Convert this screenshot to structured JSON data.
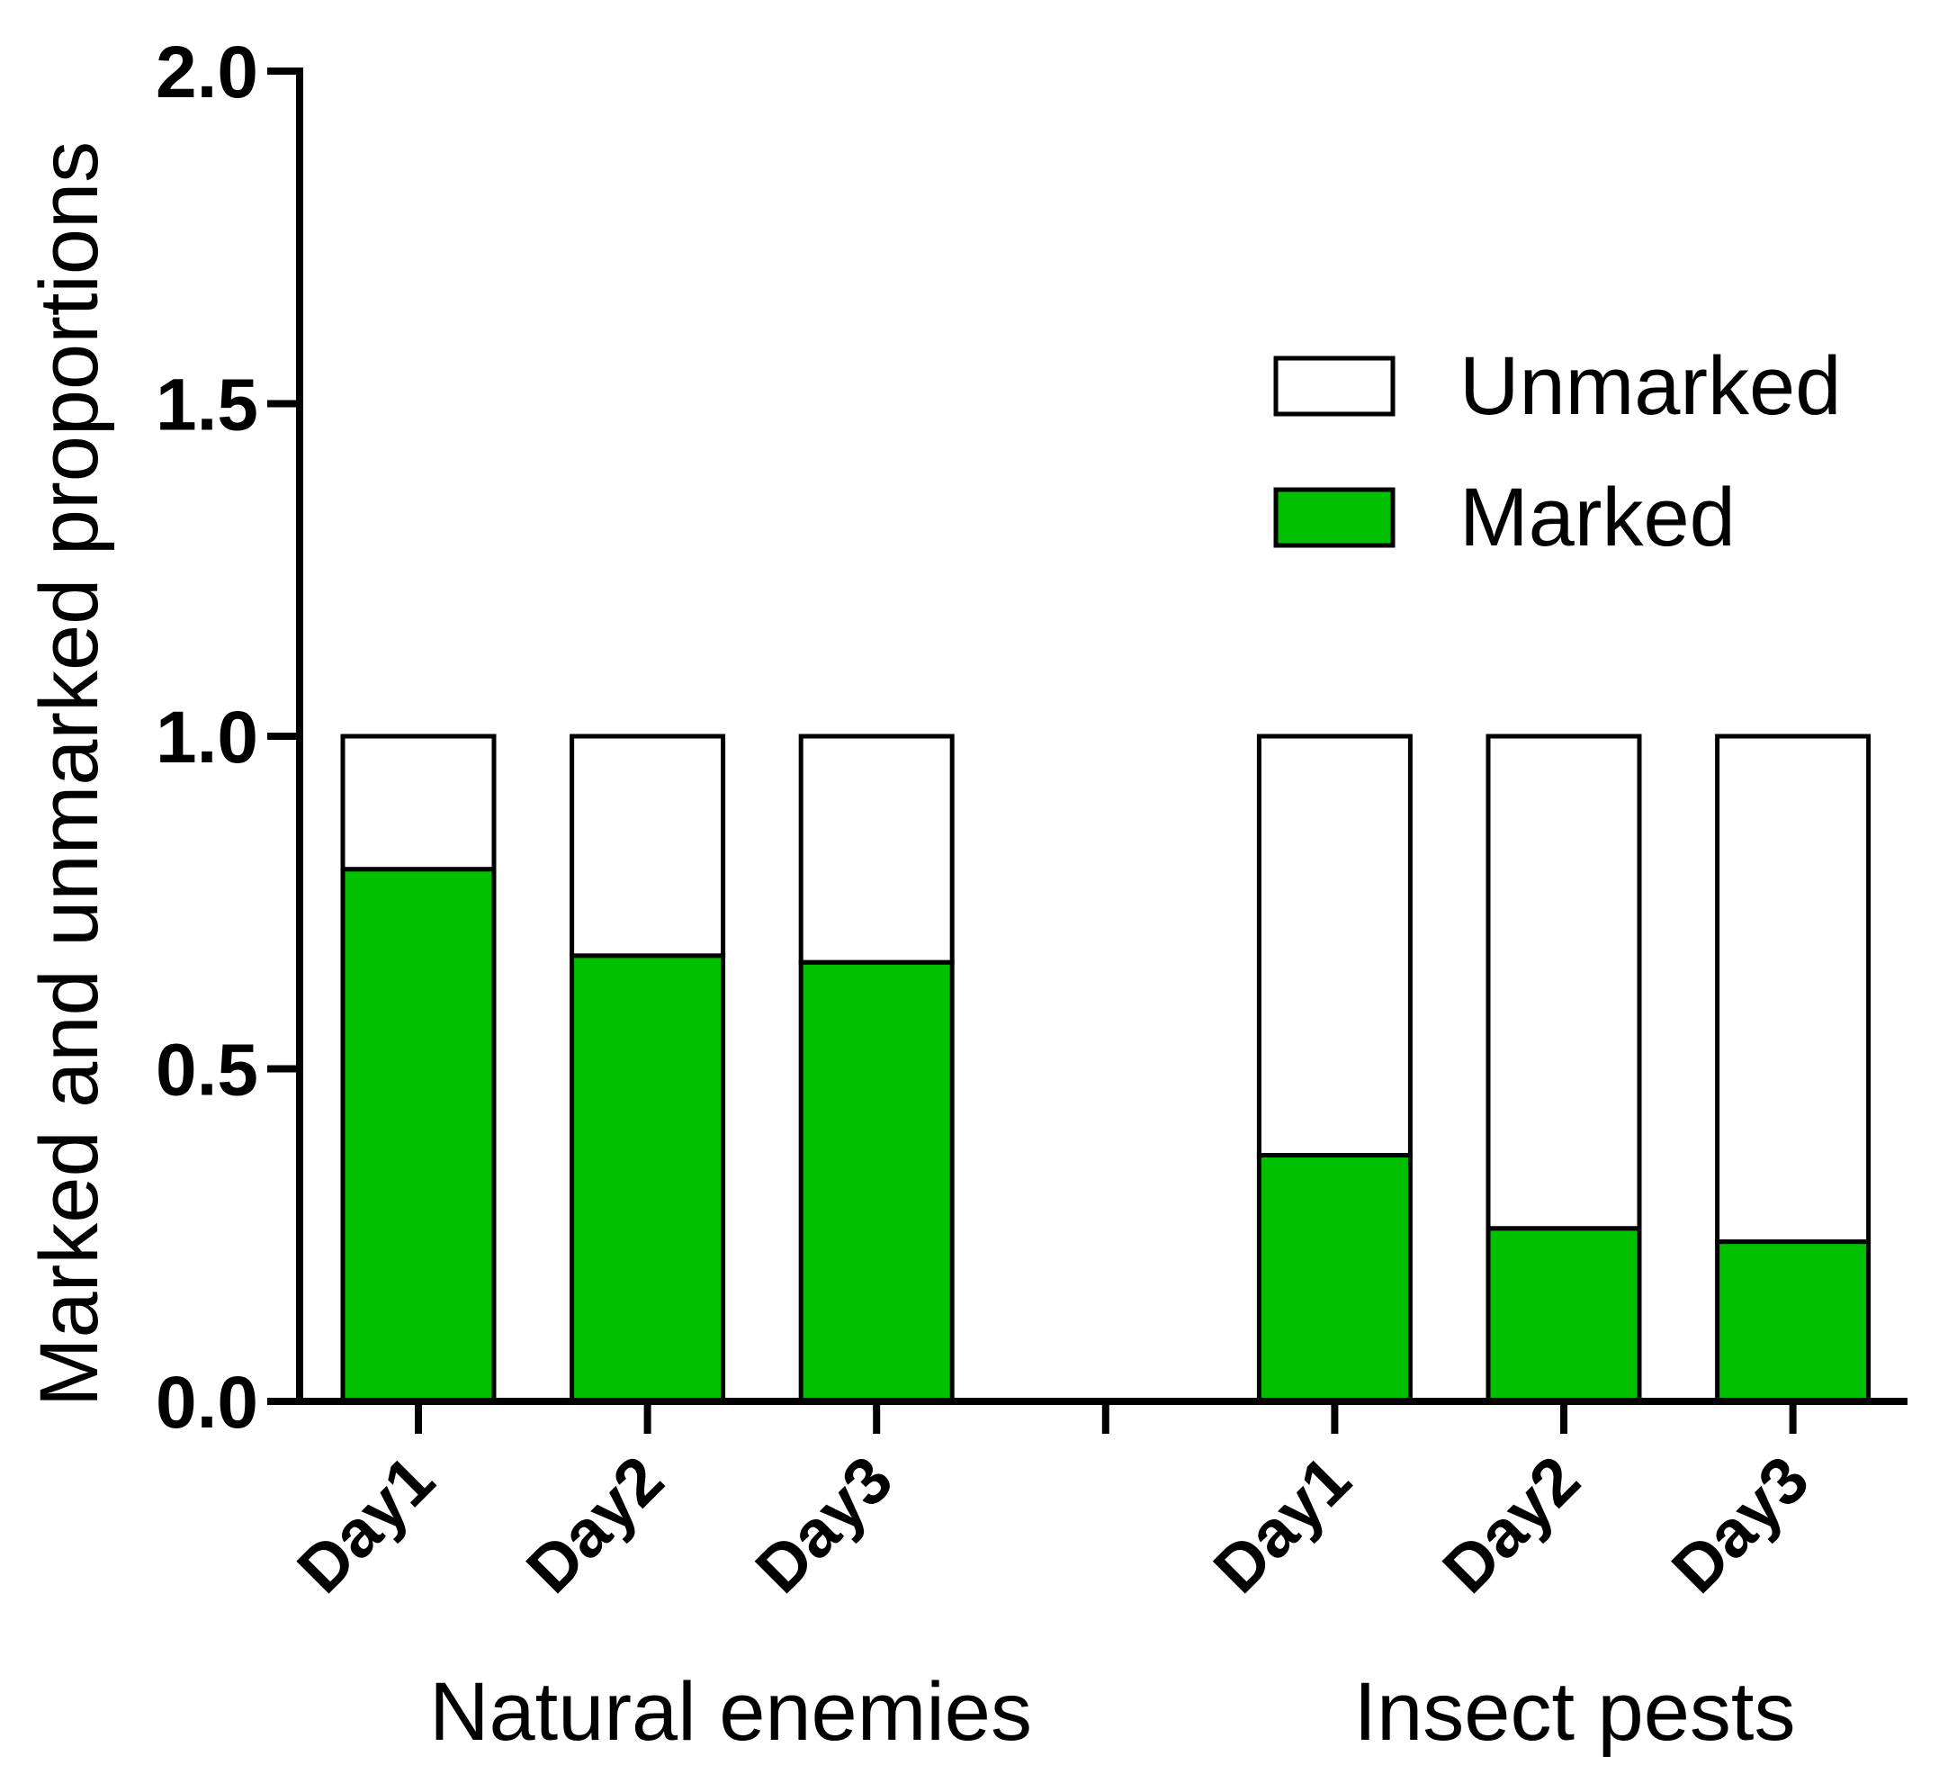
{
  "chart_data": {
    "type": "bar",
    "stacked": true,
    "ylabel": "Marked and unmarked proportions",
    "ylim": [
      0,
      2.0
    ],
    "yticks": [
      "0.0",
      "0.5",
      "1.0",
      "1.5",
      "2.0"
    ],
    "groups": [
      {
        "label": "Natural enemies",
        "categories": [
          "Day1",
          "Day2",
          "Day3"
        ]
      },
      {
        "label": "Insect pests",
        "categories": [
          "Day1",
          "Day2",
          "Day3"
        ]
      }
    ],
    "series": [
      {
        "name": "Marked",
        "color": "#00c000",
        "values": [
          0.8,
          0.67,
          0.66,
          0.37,
          0.26,
          0.24
        ]
      },
      {
        "name": "Unmarked",
        "color": "#ffffff",
        "values": [
          0.2,
          0.33,
          0.34,
          0.63,
          0.74,
          0.76
        ]
      }
    ],
    "legend": {
      "position": "top-right",
      "entries": [
        "Unmarked",
        "Marked"
      ]
    }
  }
}
